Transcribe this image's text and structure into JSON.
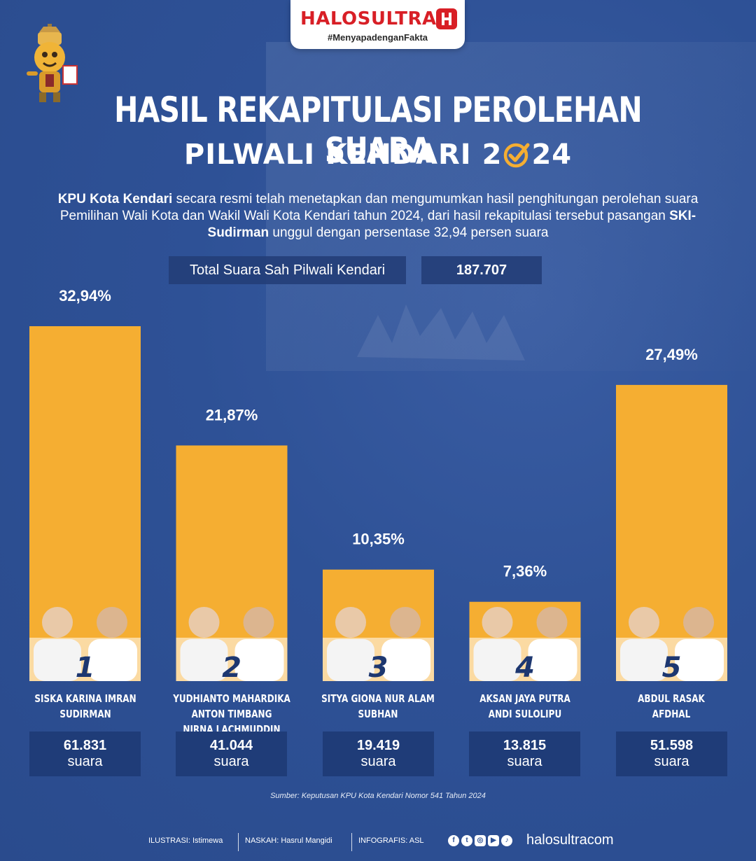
{
  "brand": {
    "name": "HALOSULTRA",
    "tagline": "#MenyapadenganFakta"
  },
  "title": {
    "main": "HASIL REKAPITULASI PEROLEHAN SUARA",
    "sub_before": "PILWALI KENDARI 2",
    "sub_after": "24"
  },
  "intro": {
    "lead_bold": "KPU Kota Kendari",
    "text_1": " secara resmi telah menetapkan dan mengumumkan hasil penghitungan perolehan suara Pemilihan Wali Kota dan Wakil Wali Kota Kendari tahun 2024, dari hasil rekapitulasi tersebut pasangan ",
    "winner_bold": "SKI-Sudirman",
    "text_2": " unggul dengan persentase 32,94 persen suara"
  },
  "total": {
    "label": "Total Suara Sah Pilwali Kendari",
    "value": "187.707"
  },
  "chart_data": {
    "type": "bar",
    "categories": [
      "1",
      "2",
      "3",
      "4",
      "5"
    ],
    "values": [
      32.94,
      21.87,
      10.35,
      7.36,
      27.49
    ],
    "value_labels": [
      "32,94%",
      "21,87%",
      "10,35%",
      "7,36%",
      "27,49%"
    ],
    "candidates": [
      "SISKA KARINA IMRAN SUDIRMAN",
      "YUDHIANTO MAHARDIKA ANTON TIMBANG NIRNA LACHMUDDIN",
      "SITYA GIONA NUR ALAM SUBHAN",
      "AKSAN JAYA PUTRA ANDI SULOLIPU",
      "ABDUL RASAK AFDHAL"
    ],
    "votes": [
      "61.831",
      "41.044",
      "19.419",
      "13.815",
      "51.598"
    ],
    "votes_unit": "suara",
    "bar_color": "#f5ae32",
    "grid": false
  },
  "candidates_display": [
    {
      "line1": "SISKA KARINA IMRAN",
      "line2": "SUDIRMAN"
    },
    {
      "line1": "YUDHIANTO MAHARDIKA ANTON TIMBANG",
      "line2": "NIRNA LACHMUDDIN"
    },
    {
      "line1": "SITYA GIONA NUR ALAM",
      "line2": "SUBHAN"
    },
    {
      "line1": "AKSAN JAYA PUTRA",
      "line2": "ANDI SULOLIPU"
    },
    {
      "line1": "ABDUL RASAK",
      "line2": "AFDHAL"
    }
  ],
  "source": "Sumber: Keputusan KPU Kota Kendari Nomor 541 Tahun 2024",
  "credits": {
    "ilustrasi": "ILUSTRASI: Istimewa",
    "naskah": "NASKAH: Hasrul Mangidi",
    "infografis": "INFOGRAFIS: ASL"
  },
  "social_icons": [
    "facebook-icon",
    "twitter-icon",
    "instagram-icon",
    "youtube-icon",
    "tiktok-icon"
  ],
  "website": "halosultracom",
  "colors": {
    "background": "#2c4f93",
    "bar": "#f5ae32",
    "box": "#1f3c78",
    "brand_red": "#d81f26"
  }
}
